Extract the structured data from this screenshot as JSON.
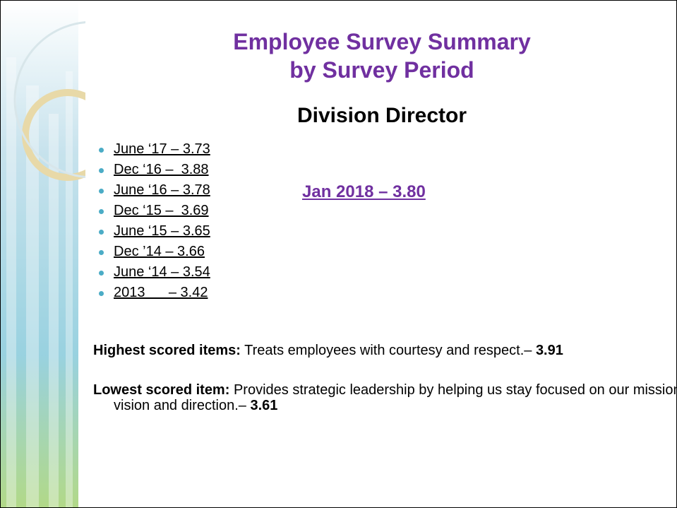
{
  "title": [
    "Employee Survey Summary",
    "by Survey Period"
  ],
  "subtitle": "Division Director",
  "history": [
    "June ‘17 – 3.73",
    "Dec ‘16 –  3.88",
    "June ‘16 – 3.78",
    "Dec ‘15 –  3.69",
    "June ‘15 – 3.65",
    "Dec ’14 – 3.66",
    "June ‘14 – 3.54",
    "2013      – 3.42"
  ],
  "current": "Jan 2018 – 3.80",
  "highest": {
    "label": "Highest scored items:",
    "text": " Treats employees with courtesy and respect.– ",
    "score": "3.91"
  },
  "lowest": {
    "label": "Lowest scored item:",
    "text": " Provides strategic leadership by helping us stay focused on our mission, vision and direction.– ",
    "score": "3.61"
  }
}
